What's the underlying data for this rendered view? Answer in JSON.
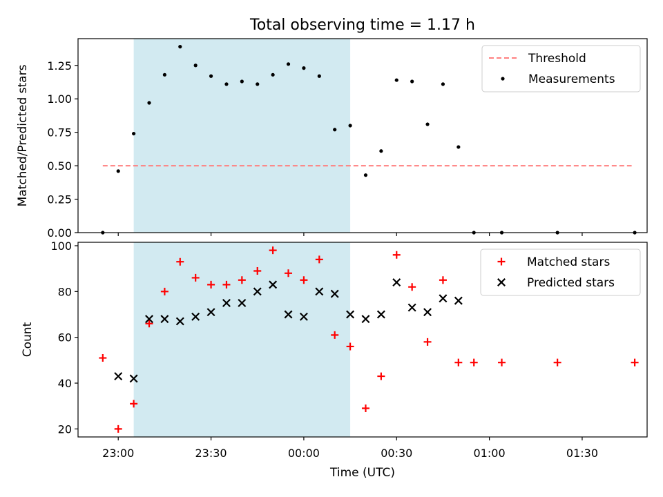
{
  "title": "Total observing time = 1.17 h",
  "xlabel": "Time (UTC)",
  "x_ticks": [
    "23:00",
    "23:30",
    "00:00",
    "00:30",
    "01:00",
    "01:30"
  ],
  "colors": {
    "highlight": "#add8e6",
    "threshold": "#ff7f7f",
    "measurement": "#000000",
    "matched": "#ff0000",
    "predicted": "#000000"
  },
  "chart_data": [
    {
      "type": "scatter",
      "ylabel": "Matched/Predicted stars",
      "ylim": [
        0,
        1.45
      ],
      "y_ticks": [
        "0.00",
        "0.25",
        "0.50",
        "0.75",
        "1.00",
        "1.25"
      ],
      "grid": false,
      "legend": "top-right",
      "highlight_span": [
        "23:05",
        "00:15"
      ],
      "threshold": {
        "name": "Threshold",
        "value": 0.5,
        "x_range": [
          "22:55",
          "01:46"
        ]
      },
      "series": [
        {
          "name": "Measurements",
          "x": [
            "22:55",
            "23:00",
            "23:05",
            "23:10",
            "23:15",
            "23:20",
            "23:25",
            "23:30",
            "23:35",
            "23:40",
            "23:45",
            "23:50",
            "23:55",
            "00:00",
            "00:05",
            "00:10",
            "00:15",
            "00:20",
            "00:25",
            "00:30",
            "00:35",
            "00:40",
            "00:45",
            "00:50",
            "00:55",
            "01:04",
            "01:22",
            "01:47"
          ],
          "y": [
            0.0,
            0.46,
            0.74,
            0.97,
            1.18,
            1.39,
            1.25,
            1.17,
            1.11,
            1.13,
            1.11,
            1.18,
            1.26,
            1.23,
            1.17,
            0.77,
            0.8,
            0.43,
            0.61,
            1.14,
            1.13,
            0.81,
            1.11,
            0.64,
            0.0,
            0.0,
            0.0,
            0.0
          ]
        }
      ]
    },
    {
      "type": "scatter",
      "ylabel": "Count",
      "ylim": [
        16.5,
        101.5
      ],
      "y_ticks": [
        "20",
        "40",
        "60",
        "80",
        "100"
      ],
      "grid": false,
      "legend": "top-right",
      "highlight_span": [
        "23:05",
        "00:15"
      ],
      "series": [
        {
          "name": "Matched stars",
          "x": [
            "22:55",
            "23:00",
            "23:05",
            "23:10",
            "23:15",
            "23:20",
            "23:25",
            "23:30",
            "23:35",
            "23:40",
            "23:45",
            "23:50",
            "23:55",
            "00:00",
            "00:05",
            "00:10",
            "00:15",
            "00:20",
            "00:25",
            "00:30",
            "00:35",
            "00:40",
            "00:45",
            "00:50",
            "00:55",
            "01:04",
            "01:22",
            "01:47"
          ],
          "y": [
            51,
            20,
            31,
            66,
            80,
            93,
            86,
            83,
            83,
            85,
            89,
            98,
            88,
            85,
            94,
            61,
            56,
            29,
            43,
            96,
            82,
            58,
            85,
            49,
            49,
            49,
            49,
            49
          ]
        },
        {
          "name": "Predicted stars",
          "x": [
            "23:00",
            "23:05",
            "23:10",
            "23:15",
            "23:20",
            "23:25",
            "23:30",
            "23:35",
            "23:40",
            "23:45",
            "23:50",
            "23:55",
            "00:00",
            "00:05",
            "00:10",
            "00:15",
            "00:20",
            "00:25",
            "00:30",
            "00:35",
            "00:40",
            "00:45",
            "00:50"
          ],
          "y": [
            43,
            42,
            68,
            68,
            67,
            69,
            71,
            75,
            75,
            80,
            83,
            70,
            69,
            80,
            79,
            70,
            68,
            70,
            84,
            73,
            71,
            77,
            76
          ]
        }
      ]
    }
  ]
}
